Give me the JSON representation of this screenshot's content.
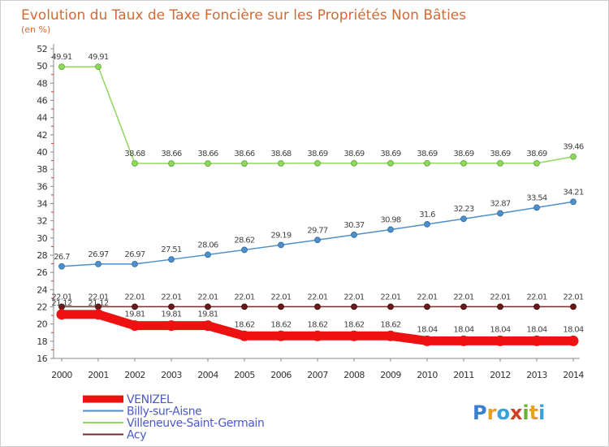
{
  "chart_data": {
    "type": "line",
    "title": "Evolution du Taux de Taxe Foncière sur les Propriétés Non Bâties",
    "subtitle": "(en %)",
    "x": [
      "2000",
      "2001",
      "2002",
      "2003",
      "2004",
      "2005",
      "2006",
      "2007",
      "2008",
      "2009",
      "2010",
      "2011",
      "2012",
      "2013",
      "2014"
    ],
    "yticks": [
      "16",
      "18",
      "20",
      "22",
      "24",
      "26",
      "28",
      "30",
      "32",
      "34",
      "36",
      "38",
      "40",
      "42",
      "44",
      "46",
      "48",
      "50",
      "52"
    ],
    "ylim": [
      16,
      52
    ],
    "grid": false,
    "legend_position": "bottom-left",
    "series": [
      {
        "name": "VENIZEL",
        "color": "#ee1111",
        "values": [
          21.12,
          21.12,
          19.81,
          19.81,
          19.81,
          18.62,
          18.62,
          18.62,
          18.62,
          18.62,
          18.04,
          18.04,
          18.04,
          18.04,
          18.04
        ],
        "labels": [
          "21.12",
          "21.12",
          "19.81",
          "19.81",
          "19.81",
          "18.62",
          "18.62",
          "18.62",
          "18.62",
          "18.62",
          "18.04",
          "18.04",
          "18.04",
          "18.04",
          "18.04"
        ]
      },
      {
        "name": "Billy-sur-Aisne",
        "color": "#4f8fc9",
        "values": [
          26.7,
          26.97,
          26.97,
          27.51,
          28.06,
          28.62,
          29.19,
          29.77,
          30.37,
          30.98,
          31.6,
          32.23,
          32.87,
          33.54,
          34.21
        ],
        "labels": [
          "26.7",
          "26.97",
          "26.97",
          "27.51",
          "28.06",
          "28.62",
          "29.19",
          "29.77",
          "30.37",
          "30.98",
          "31.6",
          "32.23",
          "32.87",
          "33.54",
          "34.21"
        ]
      },
      {
        "name": "Villeneuve-Saint-Germain",
        "color": "#8fd85a",
        "values": [
          49.91,
          49.91,
          38.68,
          38.66,
          38.66,
          38.66,
          38.68,
          38.69,
          38.69,
          38.69,
          38.69,
          38.69,
          38.69,
          38.69,
          39.46
        ],
        "labels": [
          "49.91",
          "49.91",
          "38.68",
          "38.66",
          "38.66",
          "38.66",
          "38.68",
          "38.69",
          "38.69",
          "38.69",
          "38.69",
          "38.69",
          "38.69",
          "38.69",
          "39.46"
        ]
      },
      {
        "name": "Acy",
        "color": "#7a2a2a",
        "values": [
          22.01,
          22.01,
          22.01,
          22.01,
          22.01,
          22.01,
          22.01,
          22.01,
          22.01,
          22.01,
          22.01,
          22.01,
          22.01,
          22.01,
          22.01
        ],
        "labels": [
          "22.01",
          "22.01",
          "22.01",
          "22.01",
          "22.01",
          "22.01",
          "22.01",
          "22.01",
          "22.01",
          "22.01",
          "22.01",
          "22.01",
          "22.01",
          "22.01",
          "22.01"
        ]
      }
    ]
  },
  "logo": {
    "text": "Proxiti",
    "letters": [
      "P",
      "r",
      "o",
      "x",
      "i",
      "t",
      "i"
    ]
  }
}
